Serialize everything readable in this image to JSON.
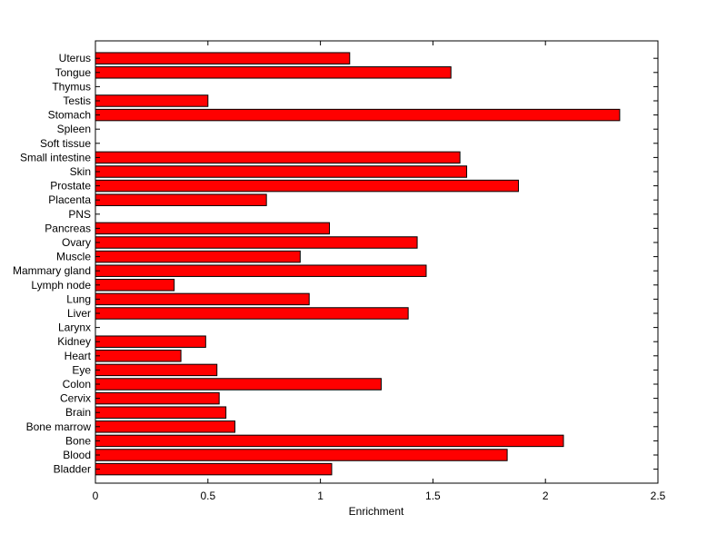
{
  "chart_data": {
    "type": "bar",
    "orientation": "horizontal",
    "title": "",
    "xlabel": "Enrichment",
    "ylabel": "",
    "xlim": [
      0,
      2.5
    ],
    "xticks": [
      "0",
      "0.5",
      "1",
      "1.5",
      "2",
      "2.5"
    ],
    "grid": false,
    "legend": "none",
    "bar_color": "#ff0000",
    "categories": [
      "Bladder",
      "Blood",
      "Bone",
      "Bone marrow",
      "Brain",
      "Cervix",
      "Colon",
      "Eye",
      "Heart",
      "Kidney",
      "Larynx",
      "Liver",
      "Lung",
      "Lymph node",
      "Mammary gland",
      "Muscle",
      "Ovary",
      "Pancreas",
      "PNS",
      "Placenta",
      "Prostate",
      "Skin",
      "Small intestine",
      "Soft tissue",
      "Spleen",
      "Stomach",
      "Testis",
      "Thymus",
      "Tongue",
      "Uterus"
    ],
    "values": [
      1.05,
      1.83,
      2.08,
      0.62,
      0.58,
      0.55,
      1.27,
      0.54,
      0.38,
      0.49,
      0,
      1.39,
      0.95,
      0.35,
      1.47,
      0.91,
      1.43,
      1.04,
      0,
      0.76,
      1.88,
      1.65,
      1.62,
      0,
      0,
      2.33,
      0.5,
      0,
      1.58,
      1.13
    ]
  }
}
